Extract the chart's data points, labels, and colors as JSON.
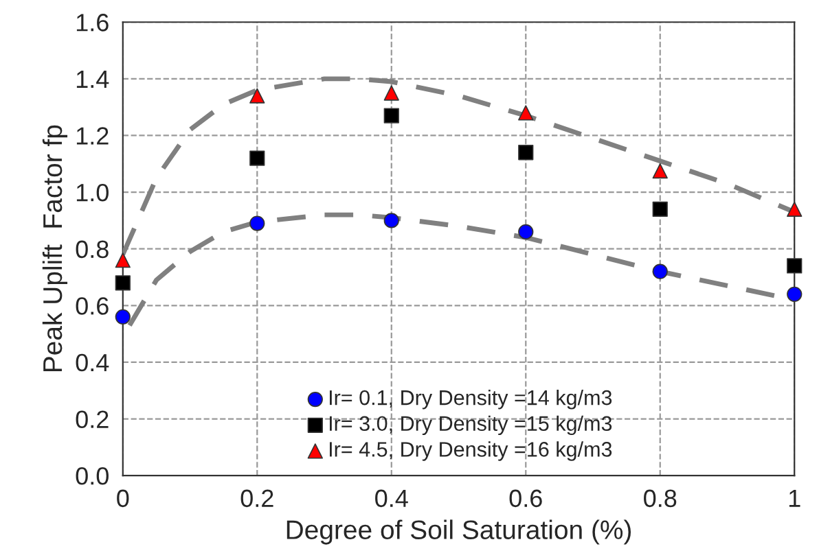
{
  "chart_data": {
    "type": "scatter",
    "xlabel": "Degree of Soil Saturation (%)",
    "ylabel": "Peak Uplift  Factor fp",
    "x": [
      0,
      0.2,
      0.4,
      0.6,
      0.8,
      1
    ],
    "series": [
      {
        "name": "Ir= 0.1, Dry Density =14 kg/m3",
        "color": "#0000ff",
        "marker": "circle",
        "values": [
          0.56,
          0.89,
          0.9,
          0.86,
          0.72,
          0.64
        ]
      },
      {
        "name": "Ir= 3.0, Dry Density =15 kg/m3",
        "color": "#000000",
        "marker": "square",
        "values": [
          0.68,
          1.12,
          1.27,
          1.14,
          0.94,
          0.74
        ]
      },
      {
        "name": "Ir= 4.5, Dry Density =16 kg/m3",
        "color": "#ff0000",
        "marker": "triangle",
        "values": [
          0.76,
          1.34,
          1.35,
          1.28,
          1.075,
          0.94
        ]
      },
      {
        "type": "line",
        "color": "#808080",
        "line_style": "dashed",
        "marker": "none",
        "x": [
          0,
          0.05,
          0.1,
          0.15,
          0.2,
          0.3,
          0.35,
          0.4,
          0.5,
          0.6,
          0.7,
          0.8,
          0.9,
          1.0
        ],
        "values": [
          0.78,
          1.05,
          1.22,
          1.31,
          1.36,
          1.4,
          1.4,
          1.39,
          1.34,
          1.27,
          1.19,
          1.11,
          1.03,
          0.93
        ]
      },
      {
        "type": "line",
        "color": "#808080",
        "line_style": "dashed",
        "marker": "none",
        "x": [
          0.01,
          0.05,
          0.1,
          0.15,
          0.2,
          0.3,
          0.35,
          0.4,
          0.5,
          0.6,
          0.7,
          0.8,
          0.9,
          1.0
        ],
        "values": [
          0.53,
          0.69,
          0.79,
          0.86,
          0.895,
          0.92,
          0.92,
          0.91,
          0.88,
          0.84,
          0.78,
          0.72,
          0.67,
          0.62
        ]
      }
    ],
    "xlim": [
      0,
      1
    ],
    "xticks": [
      0,
      0.2,
      0.4,
      0.6,
      0.8,
      1
    ],
    "ylim": [
      0,
      1.6
    ],
    "yticks": [
      {
        "value": 0,
        "label": "0.0"
      },
      {
        "value": 0.2,
        "label": "0.2"
      },
      {
        "value": 0.4,
        "label": "0.4"
      },
      {
        "value": 0.6,
        "label": "0.6"
      },
      {
        "value": 0.8,
        "label": "0.8"
      },
      {
        "value": 1.0,
        "label": "1.0"
      },
      {
        "value": 1.2,
        "label": "1.2"
      },
      {
        "value": 1.4,
        "label": "1.4"
      },
      {
        "value": 1.6,
        "label": "1.6"
      }
    ],
    "grid": true,
    "legend": "bottom"
  }
}
